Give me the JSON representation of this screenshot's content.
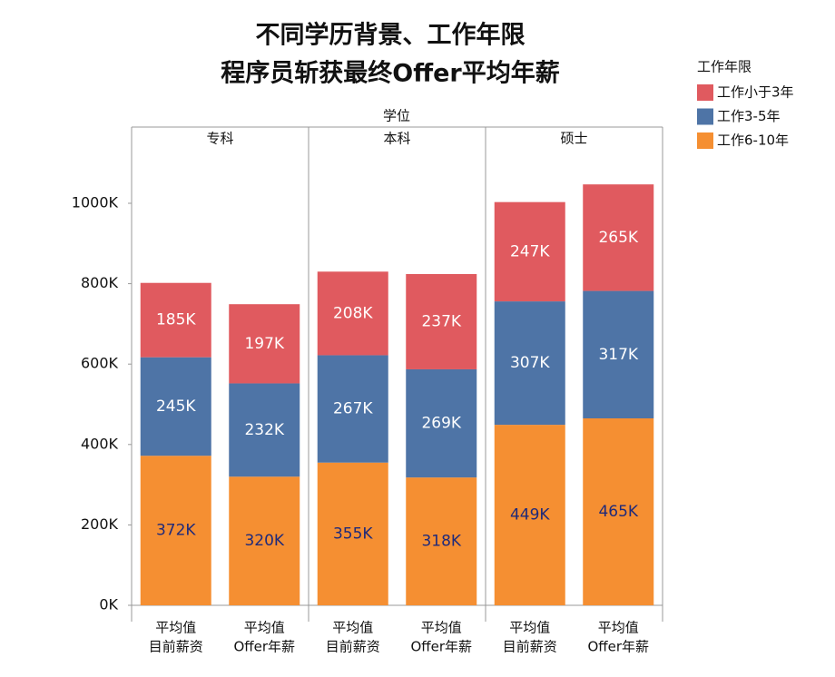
{
  "chart_data": {
    "type": "stacked-bar",
    "title": [
      "不同学历背景、工作年限",
      "程序员斩获最终Offer平均年薪"
    ],
    "group_title": "学位",
    "groups": [
      "专科",
      "本科",
      "硕士"
    ],
    "categories": [
      [
        "平均值",
        "目前薪资"
      ],
      [
        "平均值",
        "Offer年薪"
      ],
      [
        "平均值",
        "目前薪资"
      ],
      [
        "平均值",
        "Offer年薪"
      ],
      [
        "平均值",
        "目前薪资"
      ],
      [
        "平均值",
        "Offer年薪"
      ]
    ],
    "legend_title": "工作年限",
    "series": [
      {
        "name": "工作6-10年",
        "color": "#f58f32",
        "values": [
          372,
          320,
          355,
          318,
          449,
          465
        ],
        "value_labels": [
          "372K",
          "320K",
          "355K",
          "318K",
          "449K",
          "465K"
        ]
      },
      {
        "name": "工作3-5年",
        "color": "#4e74a6",
        "values": [
          245,
          232,
          267,
          269,
          307,
          317
        ],
        "value_labels": [
          "245K",
          "232K",
          "267K",
          "269K",
          "307K",
          "317K"
        ]
      },
      {
        "name": "工作小于3年",
        "color": "#e05a5f",
        "values": [
          185,
          197,
          208,
          237,
          247,
          265
        ],
        "value_labels": [
          "185K",
          "197K",
          "208K",
          "237K",
          "247K",
          "265K"
        ]
      }
    ],
    "ylim": [
      0,
      1100
    ],
    "yticks": [
      {
        "value": 0,
        "label": "0K"
      },
      {
        "value": 200,
        "label": "200K"
      },
      {
        "value": 400,
        "label": "400K"
      },
      {
        "value": 600,
        "label": "600K"
      },
      {
        "value": 800,
        "label": "800K"
      },
      {
        "value": 1000,
        "label": "1000K"
      }
    ]
  }
}
